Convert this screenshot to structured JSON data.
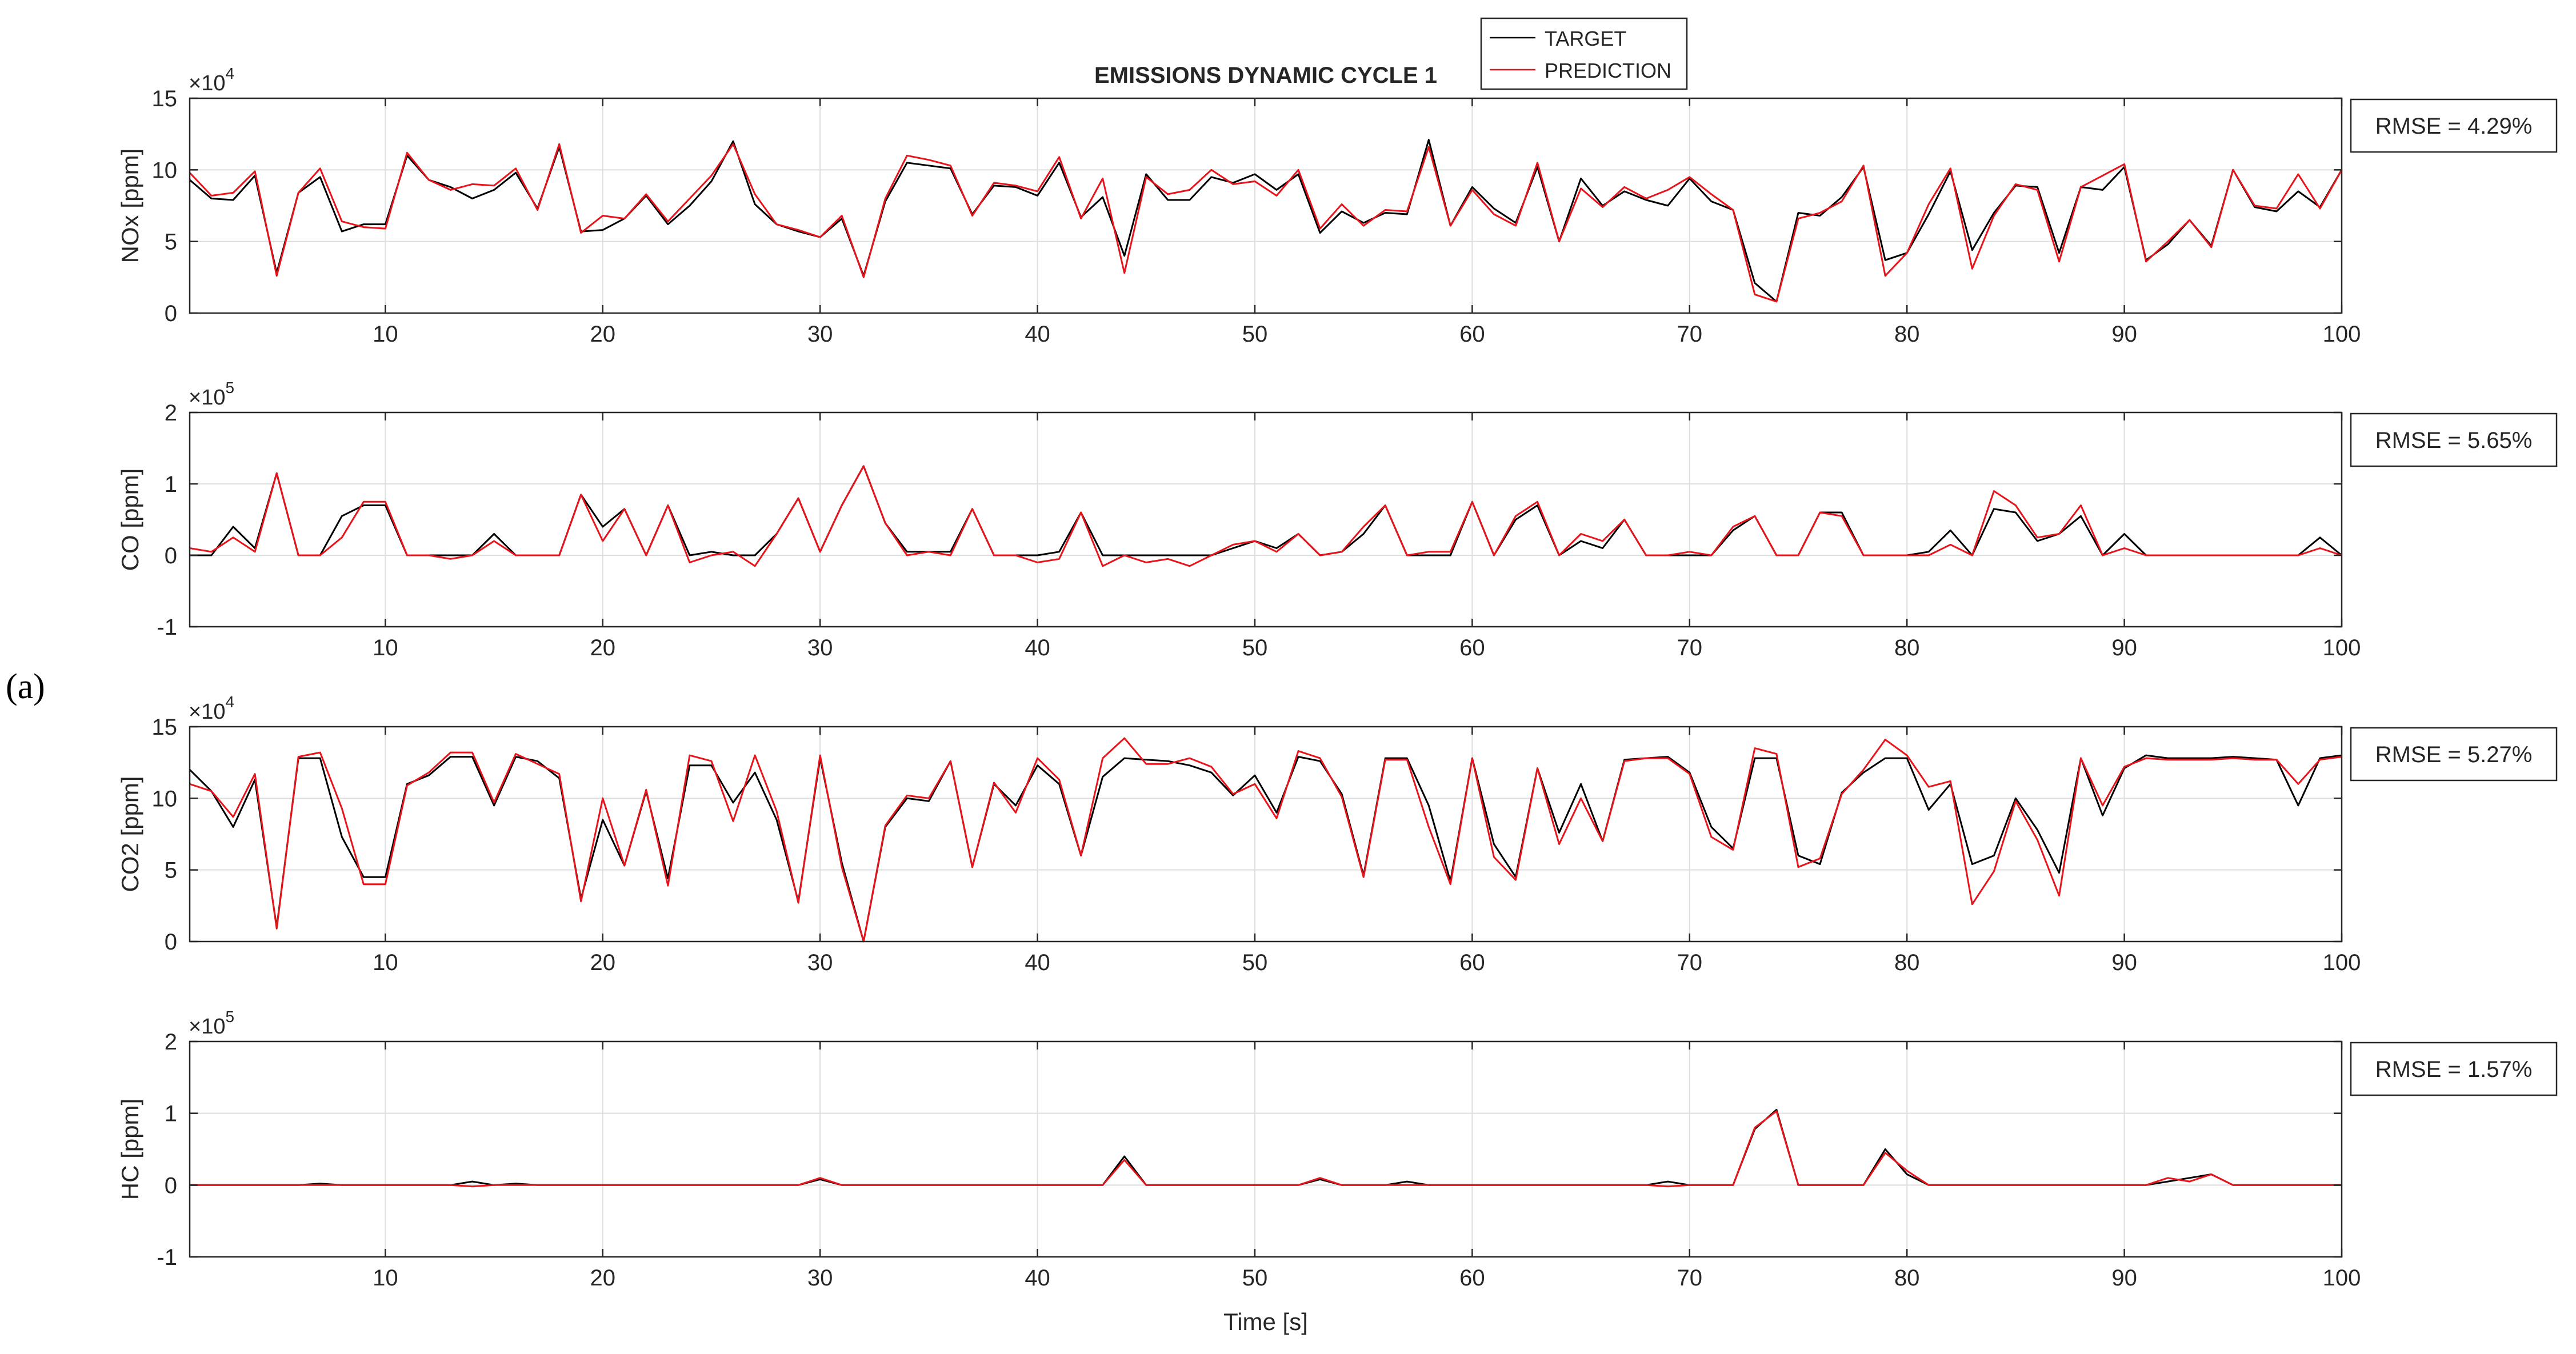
{
  "figure": {
    "panel_label": "(a)",
    "title": "EMISSIONS DYNAMIC CYCLE 1",
    "xlabel": "Time [s]"
  },
  "legend": {
    "entries": [
      {
        "name": "TARGET",
        "color": "#000000"
      },
      {
        "name": "PREDICTION",
        "color": "#e8141b"
      }
    ]
  },
  "chart_data": [
    {
      "type": "line",
      "ylabel": "NOx [ppm]",
      "exponent": "4",
      "rmse_label": "RMSE = 4.29%",
      "xlim": [
        1,
        100
      ],
      "ylim": [
        0,
        15
      ],
      "yticks": [
        0,
        5,
        10,
        15
      ],
      "xticks": [
        10,
        20,
        30,
        40,
        50,
        60,
        70,
        80,
        90,
        100
      ],
      "x_start": 1,
      "series": [
        {
          "name": "TARGET",
          "color": "#000000",
          "values": [
            9.3,
            8,
            7.9,
            9.6,
            2.8,
            8.4,
            9.5,
            5.7,
            6.2,
            6.2,
            11,
            9.3,
            8.8,
            8,
            8.6,
            9.8,
            7.3,
            11.6,
            5.7,
            5.8,
            6.6,
            8.2,
            6.2,
            7.5,
            9.2,
            12,
            7.6,
            6.2,
            5.7,
            5.3,
            6.6,
            2.6,
            7.8,
            10.5,
            10.3,
            10.1,
            6.9,
            8.9,
            8.8,
            8.2,
            10.5,
            6.7,
            8.1,
            4,
            9.7,
            7.9,
            7.9,
            9.5,
            9.1,
            9.7,
            8.6,
            9.7,
            5.6,
            7.1,
            6.3,
            7,
            6.9,
            12.1,
            6.1,
            8.8,
            7.3,
            6.3,
            10.2,
            5,
            9.4,
            7.5,
            8.5,
            7.9,
            7.5,
            9.4,
            7.8,
            7.2,
            2.1,
            0.8,
            7,
            6.8,
            8.1,
            10.2,
            3.7,
            4.2,
            6.9,
            9.9,
            4.4,
            7,
            8.9,
            8.8,
            4.2,
            8.8,
            8.6,
            10.2,
            3.7,
            4.8,
            6.5,
            4.7,
            10,
            7.4,
            7.1,
            8.5,
            7.4,
            10
          ]
        },
        {
          "name": "PREDICTION",
          "color": "#e8141b",
          "values": [
            9.8,
            8.2,
            8.4,
            9.9,
            2.6,
            8.4,
            10.1,
            6.4,
            6,
            5.9,
            11.2,
            9.3,
            8.6,
            9,
            8.9,
            10.1,
            7.2,
            11.8,
            5.6,
            6.8,
            6.6,
            8.3,
            6.4,
            8,
            9.6,
            11.8,
            8.3,
            6.2,
            5.8,
            5.3,
            6.8,
            2.5,
            8,
            11,
            10.7,
            10.3,
            6.8,
            9.1,
            8.9,
            8.5,
            10.9,
            6.6,
            9.4,
            2.8,
            9.5,
            8.3,
            8.6,
            10,
            9,
            9.2,
            8.2,
            10,
            5.9,
            7.6,
            6.1,
            7.2,
            7.1,
            11.6,
            6.1,
            8.6,
            6.9,
            6.1,
            10.5,
            5,
            8.7,
            7.4,
            8.8,
            8,
            8.6,
            9.5,
            8.3,
            7.2,
            1.3,
            0.8,
            6.6,
            7,
            7.8,
            10.3,
            2.6,
            4.2,
            7.6,
            10.1,
            3.1,
            6.8,
            9,
            8.6,
            3.6,
            8.8,
            9.6,
            10.4,
            3.6,
            5,
            6.5,
            4.6,
            10,
            7.5,
            7.3,
            9.7,
            7.3,
            10
          ]
        }
      ]
    },
    {
      "type": "line",
      "ylabel": "CO [ppm]",
      "exponent": "5",
      "rmse_label": "RMSE = 5.65%",
      "xlim": [
        1,
        100
      ],
      "ylim": [
        -1,
        2
      ],
      "yticks": [
        -1,
        0,
        1,
        2
      ],
      "xticks": [
        10,
        20,
        30,
        40,
        50,
        60,
        70,
        80,
        90,
        100
      ],
      "x_start": 1,
      "series": [
        {
          "name": "TARGET",
          "color": "#000000",
          "values": [
            0,
            0,
            0.4,
            0.1,
            1.15,
            0,
            0,
            0.55,
            0.7,
            0.7,
            0,
            0,
            0,
            0,
            0.3,
            0,
            0,
            0,
            0.85,
            0.4,
            0.65,
            0,
            0.7,
            0,
            0.05,
            0,
            0,
            0.3,
            0.8,
            0.05,
            0.7,
            1.25,
            0.45,
            0.05,
            0.05,
            0.05,
            0.65,
            0,
            0,
            0,
            0.05,
            0.6,
            0,
            0,
            0,
            0,
            0,
            0,
            0.1,
            0.2,
            0.1,
            0.3,
            0,
            0.05,
            0.3,
            0.7,
            0,
            0,
            0,
            0.75,
            0,
            0.5,
            0.7,
            0,
            0.2,
            0.1,
            0.5,
            0,
            0,
            0,
            0,
            0.35,
            0.55,
            0,
            0,
            0.6,
            0.6,
            0,
            0,
            0,
            0.05,
            0.35,
            0,
            0.65,
            0.6,
            0.2,
            0.3,
            0.55,
            0,
            0.3,
            0,
            0,
            0,
            0,
            0,
            0,
            0,
            0,
            0.25,
            0
          ]
        },
        {
          "name": "PREDICTION",
          "color": "#e8141b",
          "values": [
            0.1,
            0.05,
            0.25,
            0.05,
            1.15,
            0,
            0,
            0.25,
            0.75,
            0.75,
            0,
            0,
            -0.05,
            0,
            0.2,
            0,
            0,
            0,
            0.85,
            0.2,
            0.65,
            0,
            0.7,
            -0.1,
            0,
            0.05,
            -0.15,
            0.3,
            0.8,
            0.05,
            0.7,
            1.25,
            0.45,
            0,
            0.05,
            0,
            0.65,
            0,
            0,
            -0.1,
            -0.05,
            0.6,
            -0.15,
            0,
            -0.1,
            -0.05,
            -0.15,
            0,
            0.15,
            0.2,
            0.05,
            0.3,
            0,
            0.05,
            0.4,
            0.7,
            0,
            0.05,
            0.05,
            0.75,
            0,
            0.55,
            0.75,
            0,
            0.3,
            0.2,
            0.5,
            0,
            0,
            0.05,
            0,
            0.4,
            0.55,
            0,
            0,
            0.6,
            0.55,
            0,
            0,
            0,
            0,
            0.15,
            0,
            0.9,
            0.7,
            0.25,
            0.3,
            0.7,
            0,
            0.1,
            0,
            0,
            0,
            0,
            0,
            0,
            0,
            0,
            0.1,
            0
          ]
        }
      ]
    },
    {
      "type": "line",
      "ylabel": "CO2 [ppm]",
      "exponent": "4",
      "rmse_label": "RMSE = 5.27%",
      "xlim": [
        1,
        100
      ],
      "ylim": [
        0,
        15
      ],
      "yticks": [
        0,
        5,
        10,
        15
      ],
      "xticks": [
        10,
        20,
        30,
        40,
        50,
        60,
        70,
        80,
        90,
        100
      ],
      "x_start": 1,
      "series": [
        {
          "name": "TARGET",
          "color": "#000000",
          "values": [
            12,
            10.5,
            8,
            11.3,
            1,
            12.8,
            12.8,
            7.3,
            4.5,
            4.5,
            11,
            11.6,
            12.9,
            12.9,
            9.5,
            12.9,
            12.6,
            11.4,
            3,
            8.5,
            5.3,
            10.5,
            4.4,
            12.3,
            12.3,
            9.7,
            11.8,
            8.5,
            2.8,
            12.8,
            5.5,
            0,
            8,
            10,
            9.8,
            12.6,
            5.2,
            11,
            9.5,
            12.3,
            11,
            6,
            11.5,
            12.8,
            12.7,
            12.6,
            12.3,
            11.8,
            10.2,
            11.6,
            9,
            12.9,
            12.6,
            10.3,
            4.6,
            12.8,
            12.8,
            9.5,
            4.2,
            12.8,
            6.8,
            4.5,
            12.1,
            7.6,
            11,
            7,
            12.7,
            12.8,
            12.9,
            11.8,
            8,
            6.5,
            12.8,
            12.8,
            6,
            5.4,
            10.4,
            11.8,
            12.8,
            12.8,
            9.2,
            11,
            5.4,
            6,
            10,
            7.8,
            4.8,
            12.8,
            8.8,
            12.1,
            13,
            12.8,
            12.8,
            12.8,
            12.9,
            12.8,
            12.7,
            9.5,
            12.8,
            13
          ]
        },
        {
          "name": "PREDICTION",
          "color": "#e8141b",
          "values": [
            11,
            10.5,
            8.7,
            11.7,
            0.9,
            12.9,
            13.2,
            9.3,
            4,
            4,
            10.9,
            11.8,
            13.2,
            13.2,
            9.7,
            13.1,
            12.4,
            11.7,
            2.8,
            10,
            5.3,
            10.6,
            3.9,
            13,
            12.6,
            8.4,
            13,
            9.1,
            2.7,
            13,
            5.2,
            0,
            8.1,
            10.2,
            10,
            12.6,
            5.2,
            11.1,
            9,
            12.8,
            11.3,
            6,
            12.8,
            14.2,
            12.4,
            12.4,
            12.8,
            12.2,
            10.3,
            11,
            8.6,
            13.3,
            12.8,
            10.1,
            4.5,
            12.7,
            12.7,
            8,
            4,
            12.8,
            5.9,
            4.3,
            12.1,
            6.8,
            10,
            7,
            12.6,
            12.8,
            12.8,
            11.7,
            7.3,
            6.4,
            13.5,
            13.1,
            5.2,
            5.8,
            10.3,
            12,
            14.1,
            13,
            10.8,
            11.2,
            2.6,
            4.9,
            9.8,
            7.1,
            3.2,
            12.8,
            9.5,
            12.2,
            12.8,
            12.7,
            12.7,
            12.7,
            12.8,
            12.7,
            12.7,
            11,
            12.7,
            12.9
          ]
        }
      ]
    },
    {
      "type": "line",
      "ylabel": "HC [ppm]",
      "exponent": "5",
      "rmse_label": "RMSE = 1.57%",
      "xlim": [
        1,
        100
      ],
      "ylim": [
        -1,
        2
      ],
      "yticks": [
        -1,
        0,
        1,
        2
      ],
      "xticks": [
        10,
        20,
        30,
        40,
        50,
        60,
        70,
        80,
        90,
        100
      ],
      "x_start": 1,
      "series": [
        {
          "name": "TARGET",
          "color": "#000000",
          "values": [
            0,
            0,
            0,
            0,
            0,
            0,
            0.02,
            0,
            0,
            0,
            0,
            0,
            0,
            0.05,
            0,
            0.02,
            0,
            0,
            0,
            0,
            0,
            0,
            0,
            0,
            0,
            0,
            0,
            0,
            0,
            0.08,
            0,
            0,
            0,
            0,
            0,
            0,
            0,
            0,
            0,
            0,
            0,
            0,
            0,
            0.4,
            0,
            0,
            0,
            0,
            0,
            0,
            0,
            0,
            0.08,
            0,
            0,
            0,
            0.05,
            0,
            0,
            0,
            0,
            0,
            0,
            0,
            0,
            0,
            0,
            0,
            0.05,
            0,
            0,
            0,
            0.78,
            1.05,
            0,
            0,
            0,
            0,
            0.5,
            0.15,
            0,
            0,
            0,
            0,
            0,
            0,
            0,
            0,
            0,
            0,
            0,
            0.05,
            0.1,
            0.15,
            0,
            0,
            0,
            0,
            0,
            0
          ]
        },
        {
          "name": "PREDICTION",
          "color": "#e8141b",
          "values": [
            0,
            0,
            0,
            0,
            0,
            0,
            0,
            0,
            0,
            0,
            0,
            0,
            0,
            -0.02,
            0,
            0,
            0,
            0,
            0,
            0,
            0,
            0,
            0,
            0,
            0,
            0,
            0,
            0,
            0,
            0.1,
            0,
            0,
            0,
            0,
            0,
            0,
            0,
            0,
            0,
            0,
            0,
            0,
            0,
            0.35,
            0,
            0,
            0,
            0,
            0,
            0,
            0,
            0,
            0.1,
            0,
            0,
            0,
            0,
            0,
            0,
            0,
            0,
            0,
            0,
            0,
            0,
            0,
            0,
            0,
            -0.02,
            0,
            0,
            0,
            0.8,
            1.03,
            0,
            0,
            0,
            0,
            0.45,
            0.2,
            0,
            0,
            0,
            0,
            0,
            0,
            0,
            0,
            0,
            0,
            0,
            0.1,
            0.05,
            0.15,
            0,
            0,
            0,
            0,
            0,
            0
          ]
        }
      ]
    }
  ]
}
